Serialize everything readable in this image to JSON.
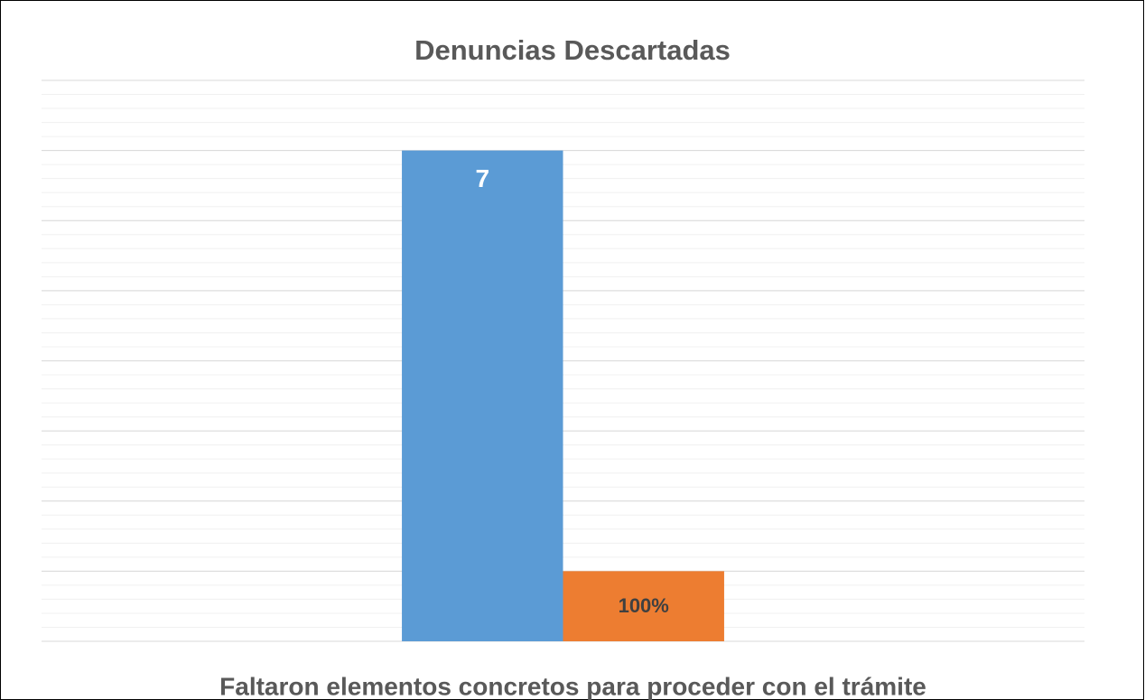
{
  "chart_data": {
    "type": "bar",
    "title": "Denuncias Descartadas",
    "categories": [
      "Faltaron elementos concretos para proceder con el trámite"
    ],
    "series": [
      {
        "color": "#5b9bd5",
        "values": [
          7
        ]
      },
      {
        "color": "#ed7d31",
        "values": [
          1
        ],
        "value_labels": [
          "100%"
        ]
      }
    ],
    "ylim": [
      0,
      8
    ],
    "yticks": [
      0,
      1,
      2,
      3,
      4,
      5,
      6,
      7,
      8
    ],
    "grid": true,
    "minor_grid_step": 0.2
  }
}
